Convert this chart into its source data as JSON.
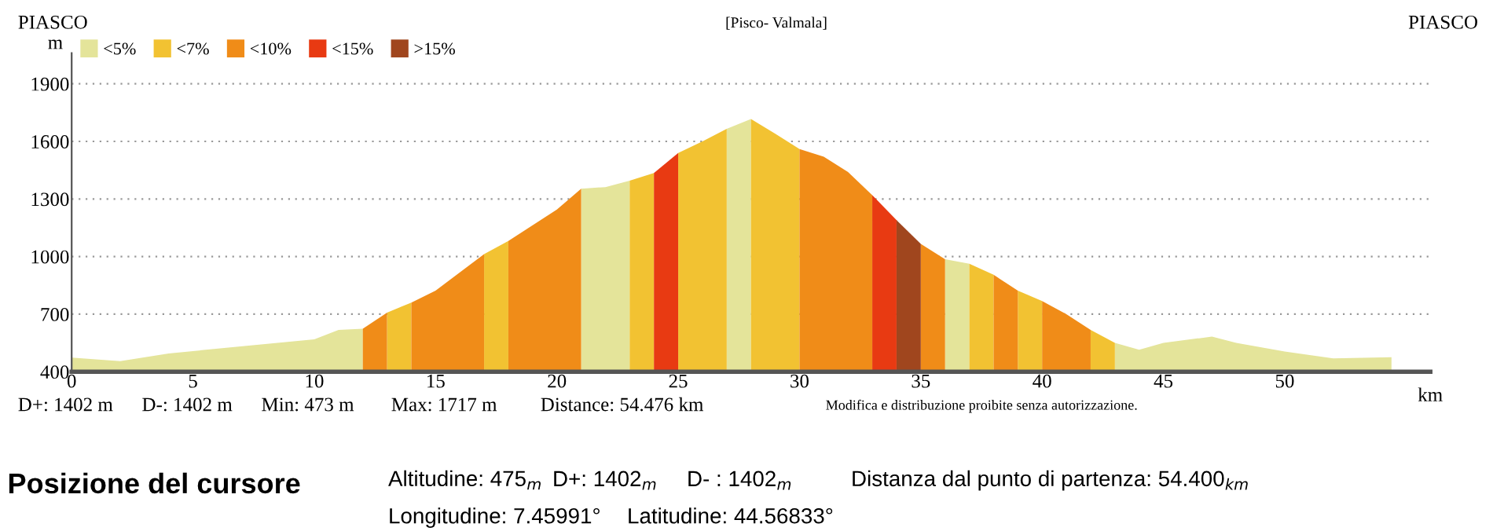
{
  "chart_data": {
    "type": "area",
    "title": "[Pisco- Valmala]",
    "ylabel": "m",
    "xlabel": "km",
    "xlim": [
      0,
      56
    ],
    "ylim": [
      400,
      2060
    ],
    "xticks": [
      0,
      5,
      10,
      15,
      20,
      25,
      30,
      35,
      40,
      45,
      50
    ],
    "yticks": [
      400,
      700,
      1000,
      1300,
      1600,
      1900
    ],
    "grid": "y",
    "legend": "top left",
    "series": [
      {
        "name": "<5%",
        "color": "#e4e49a",
        "x": [
          0,
          2,
          4,
          7.3,
          10,
          11,
          12,
          16.5,
          21,
          22,
          23,
          25,
          27,
          28,
          32,
          36,
          37,
          40,
          43,
          44,
          45,
          47,
          48,
          50,
          52,
          54.4
        ],
        "values": [
          473,
          455,
          495,
          536,
          569,
          618,
          624,
          null,
          1353,
          1362,
          1395,
          null,
          1665,
          1717,
          null,
          986,
          963,
          null,
          550,
          514,
          550,
          583,
          550,
          505,
          469,
          475
        ]
      },
      {
        "name": "<7%",
        "color": "#f2c232",
        "x": [
          13,
          14,
          15.5,
          17,
          18,
          20.5,
          23,
          24,
          24.5,
          25,
          26,
          27,
          27.5,
          28,
          29,
          30,
          33.5,
          37,
          38,
          38.5,
          39,
          40,
          41,
          42,
          43
        ],
        "values": [
          708,
          760,
          null,
          1013,
          1081,
          null,
          1395,
          1435,
          null,
          1540,
          1600,
          1665,
          null,
          1717,
          1640,
          1560,
          null,
          963,
          905,
          null,
          822,
          768,
          null,
          618,
          550
        ]
      },
      {
        "name": "<10%",
        "color": "#f08c18",
        "x": [
          12,
          13,
          13.5,
          14,
          15,
          16,
          17,
          17.5,
          18,
          19,
          20,
          21,
          25,
          30,
          31,
          32,
          33,
          34,
          35,
          36,
          37,
          38,
          39,
          39.5,
          40,
          41,
          42
        ],
        "values": [
          624,
          708,
          null,
          760,
          822,
          918,
          1013,
          null,
          1081,
          1163,
          1245,
          1353,
          null,
          1560,
          1520,
          1440,
          1320,
          null,
          1066,
          986,
          null,
          905,
          822,
          null,
          768,
          700,
          618
        ]
      },
      {
        "name": "<15%",
        "color": "#e83a12",
        "x": [
          24,
          25,
          29,
          33,
          34
        ],
        "values": [
          1435,
          1540,
          null,
          1320,
          1190
        ]
      },
      {
        "name": ">15%",
        "color": "#a0461e",
        "x": [
          34,
          35
        ],
        "values": [
          1190,
          1066
        ]
      }
    ],
    "annotations": [
      "PIASCO",
      "PIASCO",
      "D+: 1402 m",
      "D-: 1402 m",
      "Min: 473 m",
      "Max: 1717 m",
      "Distance: 54.476 km",
      "Modifica e distribuzione proibite senza autorizzazione.",
      "Posizione del cursore",
      "Altitudine: 475$_{m}$",
      "D+: 1402$_{m}$",
      "D- : 1402$_{m}$",
      "Distanza dal punto di partenza: 54.400$_{km}$",
      "Longitudine: 7.45991°",
      "Latitudine: 44.56833°"
    ]
  }
}
